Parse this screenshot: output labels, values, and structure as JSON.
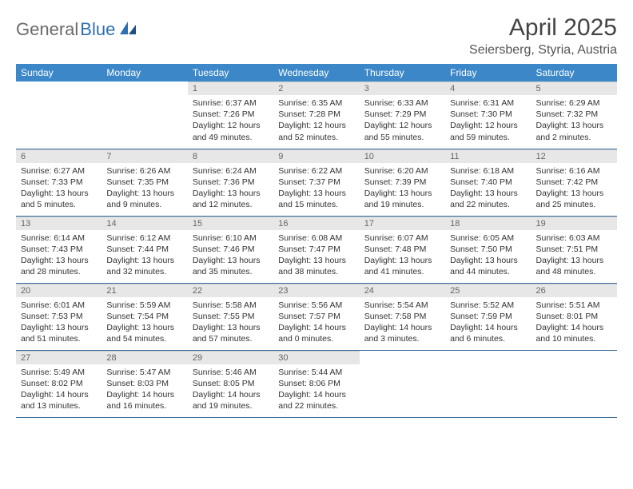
{
  "logo": {
    "part1": "General",
    "part2": "Blue"
  },
  "title": "April 2025",
  "location": "Seiersberg, Styria, Austria",
  "colors": {
    "header_bg": "#3b87c8",
    "header_text": "#ffffff",
    "daynum_bg": "#e7e7e7",
    "daynum_text": "#666666",
    "rule": "#3b6fa0",
    "logo_gray": "#6a6a6a",
    "logo_blue": "#2f6fb0"
  },
  "weekdays": [
    "Sunday",
    "Monday",
    "Tuesday",
    "Wednesday",
    "Thursday",
    "Friday",
    "Saturday"
  ],
  "weeks": [
    [
      null,
      null,
      {
        "n": "1",
        "sr": "Sunrise: 6:37 AM",
        "ss": "Sunset: 7:26 PM",
        "d1": "Daylight: 12 hours",
        "d2": "and 49 minutes."
      },
      {
        "n": "2",
        "sr": "Sunrise: 6:35 AM",
        "ss": "Sunset: 7:28 PM",
        "d1": "Daylight: 12 hours",
        "d2": "and 52 minutes."
      },
      {
        "n": "3",
        "sr": "Sunrise: 6:33 AM",
        "ss": "Sunset: 7:29 PM",
        "d1": "Daylight: 12 hours",
        "d2": "and 55 minutes."
      },
      {
        "n": "4",
        "sr": "Sunrise: 6:31 AM",
        "ss": "Sunset: 7:30 PM",
        "d1": "Daylight: 12 hours",
        "d2": "and 59 minutes."
      },
      {
        "n": "5",
        "sr": "Sunrise: 6:29 AM",
        "ss": "Sunset: 7:32 PM",
        "d1": "Daylight: 13 hours",
        "d2": "and 2 minutes."
      }
    ],
    [
      {
        "n": "6",
        "sr": "Sunrise: 6:27 AM",
        "ss": "Sunset: 7:33 PM",
        "d1": "Daylight: 13 hours",
        "d2": "and 5 minutes."
      },
      {
        "n": "7",
        "sr": "Sunrise: 6:26 AM",
        "ss": "Sunset: 7:35 PM",
        "d1": "Daylight: 13 hours",
        "d2": "and 9 minutes."
      },
      {
        "n": "8",
        "sr": "Sunrise: 6:24 AM",
        "ss": "Sunset: 7:36 PM",
        "d1": "Daylight: 13 hours",
        "d2": "and 12 minutes."
      },
      {
        "n": "9",
        "sr": "Sunrise: 6:22 AM",
        "ss": "Sunset: 7:37 PM",
        "d1": "Daylight: 13 hours",
        "d2": "and 15 minutes."
      },
      {
        "n": "10",
        "sr": "Sunrise: 6:20 AM",
        "ss": "Sunset: 7:39 PM",
        "d1": "Daylight: 13 hours",
        "d2": "and 19 minutes."
      },
      {
        "n": "11",
        "sr": "Sunrise: 6:18 AM",
        "ss": "Sunset: 7:40 PM",
        "d1": "Daylight: 13 hours",
        "d2": "and 22 minutes."
      },
      {
        "n": "12",
        "sr": "Sunrise: 6:16 AM",
        "ss": "Sunset: 7:42 PM",
        "d1": "Daylight: 13 hours",
        "d2": "and 25 minutes."
      }
    ],
    [
      {
        "n": "13",
        "sr": "Sunrise: 6:14 AM",
        "ss": "Sunset: 7:43 PM",
        "d1": "Daylight: 13 hours",
        "d2": "and 28 minutes."
      },
      {
        "n": "14",
        "sr": "Sunrise: 6:12 AM",
        "ss": "Sunset: 7:44 PM",
        "d1": "Daylight: 13 hours",
        "d2": "and 32 minutes."
      },
      {
        "n": "15",
        "sr": "Sunrise: 6:10 AM",
        "ss": "Sunset: 7:46 PM",
        "d1": "Daylight: 13 hours",
        "d2": "and 35 minutes."
      },
      {
        "n": "16",
        "sr": "Sunrise: 6:08 AM",
        "ss": "Sunset: 7:47 PM",
        "d1": "Daylight: 13 hours",
        "d2": "and 38 minutes."
      },
      {
        "n": "17",
        "sr": "Sunrise: 6:07 AM",
        "ss": "Sunset: 7:48 PM",
        "d1": "Daylight: 13 hours",
        "d2": "and 41 minutes."
      },
      {
        "n": "18",
        "sr": "Sunrise: 6:05 AM",
        "ss": "Sunset: 7:50 PM",
        "d1": "Daylight: 13 hours",
        "d2": "and 44 minutes."
      },
      {
        "n": "19",
        "sr": "Sunrise: 6:03 AM",
        "ss": "Sunset: 7:51 PM",
        "d1": "Daylight: 13 hours",
        "d2": "and 48 minutes."
      }
    ],
    [
      {
        "n": "20",
        "sr": "Sunrise: 6:01 AM",
        "ss": "Sunset: 7:53 PM",
        "d1": "Daylight: 13 hours",
        "d2": "and 51 minutes."
      },
      {
        "n": "21",
        "sr": "Sunrise: 5:59 AM",
        "ss": "Sunset: 7:54 PM",
        "d1": "Daylight: 13 hours",
        "d2": "and 54 minutes."
      },
      {
        "n": "22",
        "sr": "Sunrise: 5:58 AM",
        "ss": "Sunset: 7:55 PM",
        "d1": "Daylight: 13 hours",
        "d2": "and 57 minutes."
      },
      {
        "n": "23",
        "sr": "Sunrise: 5:56 AM",
        "ss": "Sunset: 7:57 PM",
        "d1": "Daylight: 14 hours",
        "d2": "and 0 minutes."
      },
      {
        "n": "24",
        "sr": "Sunrise: 5:54 AM",
        "ss": "Sunset: 7:58 PM",
        "d1": "Daylight: 14 hours",
        "d2": "and 3 minutes."
      },
      {
        "n": "25",
        "sr": "Sunrise: 5:52 AM",
        "ss": "Sunset: 7:59 PM",
        "d1": "Daylight: 14 hours",
        "d2": "and 6 minutes."
      },
      {
        "n": "26",
        "sr": "Sunrise: 5:51 AM",
        "ss": "Sunset: 8:01 PM",
        "d1": "Daylight: 14 hours",
        "d2": "and 10 minutes."
      }
    ],
    [
      {
        "n": "27",
        "sr": "Sunrise: 5:49 AM",
        "ss": "Sunset: 8:02 PM",
        "d1": "Daylight: 14 hours",
        "d2": "and 13 minutes."
      },
      {
        "n": "28",
        "sr": "Sunrise: 5:47 AM",
        "ss": "Sunset: 8:03 PM",
        "d1": "Daylight: 14 hours",
        "d2": "and 16 minutes."
      },
      {
        "n": "29",
        "sr": "Sunrise: 5:46 AM",
        "ss": "Sunset: 8:05 PM",
        "d1": "Daylight: 14 hours",
        "d2": "and 19 minutes."
      },
      {
        "n": "30",
        "sr": "Sunrise: 5:44 AM",
        "ss": "Sunset: 8:06 PM",
        "d1": "Daylight: 14 hours",
        "d2": "and 22 minutes."
      },
      null,
      null,
      null
    ]
  ]
}
